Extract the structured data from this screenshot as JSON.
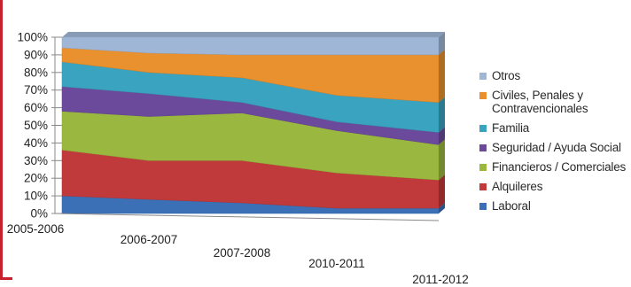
{
  "chart_data": {
    "type": "area",
    "stacked": true,
    "three_d": true,
    "categories": [
      "2005-2006",
      "2006-2007",
      "2007-2008",
      "2010-2011",
      "2011-2012"
    ],
    "yticks": [
      "0%",
      "10%",
      "20%",
      "30%",
      "40%",
      "50%",
      "60%",
      "70%",
      "80%",
      "90%",
      "100%"
    ],
    "ylim": [
      0,
      100
    ],
    "legend_position": "right",
    "series": [
      {
        "name": "Laboral",
        "color": "#3b6fb6",
        "values": [
          10,
          8,
          6,
          3,
          3
        ]
      },
      {
        "name": "Alquileres",
        "color": "#c0393b",
        "values": [
          26,
          22,
          24,
          20,
          16
        ]
      },
      {
        "name": "Financieros / Comerciales",
        "color": "#9ab83f",
        "values": [
          22,
          25,
          27,
          24,
          20
        ]
      },
      {
        "name": "Seguridad / Ayuda Social",
        "color": "#6b4a9b",
        "values": [
          14,
          13,
          6,
          5,
          7
        ]
      },
      {
        "name": "Familia",
        "color": "#3aa3c0",
        "values": [
          14,
          12,
          14,
          15,
          17
        ]
      },
      {
        "name": "Civiles, Penales y Contravencionales",
        "color": "#e9902f",
        "values": [
          8,
          11,
          13,
          23,
          27
        ]
      },
      {
        "name": "Otros",
        "color": "#9fb6d6",
        "values": [
          6,
          9,
          10,
          10,
          10
        ]
      }
    ]
  }
}
